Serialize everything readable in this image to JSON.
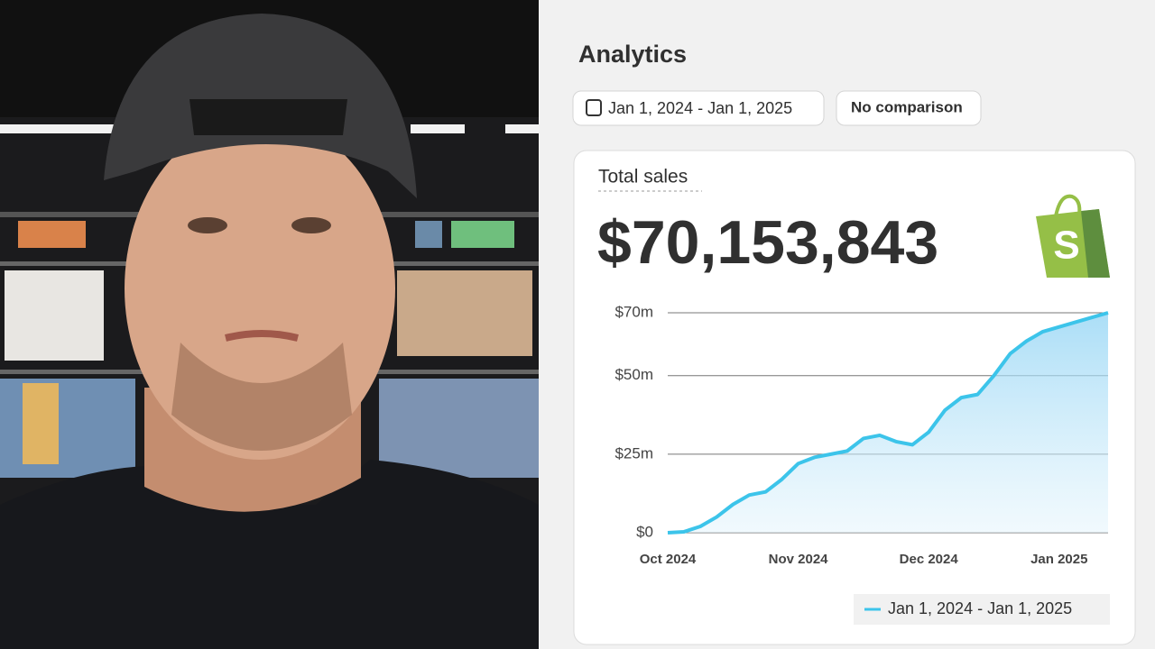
{
  "page": {
    "title": "Analytics",
    "date_range": "Jan 1, 2024 - Jan 1, 2025",
    "comparison": "No comparison",
    "card_title": "Total sales",
    "total": "$70,153,843"
  },
  "chart_data": {
    "type": "line",
    "categories": [
      "Oct 2024",
      null,
      null,
      null,
      null,
      null,
      null,
      null,
      "Nov 2024",
      null,
      null,
      null,
      null,
      null,
      null,
      null,
      "Dec 2024",
      null,
      null,
      null,
      null,
      null,
      null,
      null,
      "Jan 2025",
      null,
      null,
      null
    ],
    "series": [
      {
        "name": "Jan 1, 2024 - Jan 1, 2025",
        "color": "#3cc4ea",
        "values": [
          0,
          0.3,
          2,
          5,
          9,
          12,
          13,
          17,
          22,
          24,
          25,
          26,
          30,
          31,
          29,
          28,
          32,
          39,
          43,
          44,
          50,
          57,
          61,
          64,
          65.5,
          67,
          68.5,
          70
        ]
      }
    ],
    "ylim": [
      0,
      70
    ],
    "yticks": [
      {
        "value": 0,
        "label": "$0"
      },
      {
        "value": 25,
        "label": "$25m"
      },
      {
        "value": 50,
        "label": "$50m"
      },
      {
        "value": 70,
        "label": "$70m"
      }
    ],
    "grid": true
  }
}
